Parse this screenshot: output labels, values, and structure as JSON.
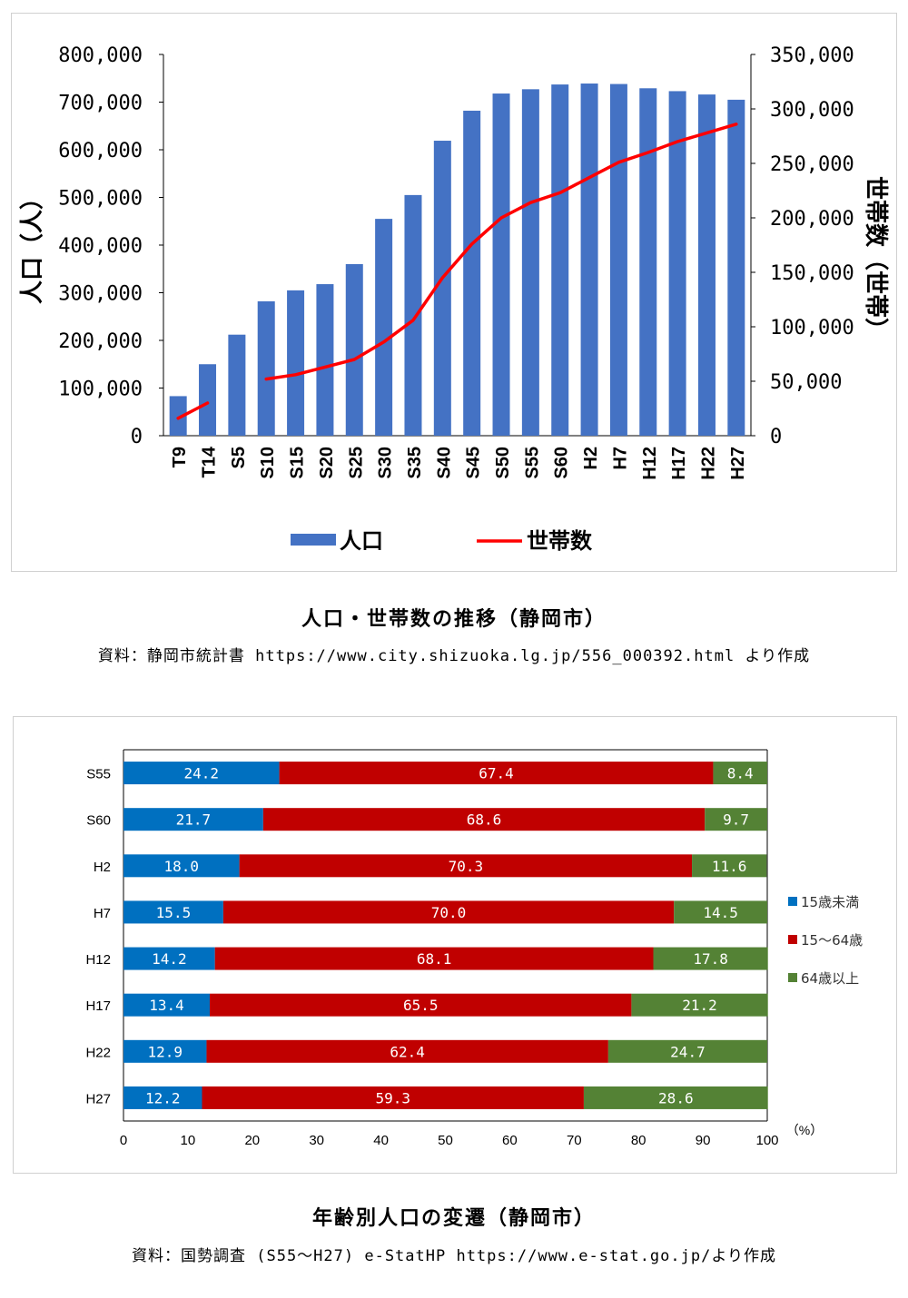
{
  "chart_data": [
    {
      "type": "bar+line",
      "title": "人口・世帯数の推移（静岡市）",
      "source": "資料：静岡市統計書 https://www.city.shizuoka.lg.jp/556_000392.html より作成",
      "categories": [
        "T9",
        "T14",
        "S5",
        "S10",
        "S15",
        "S20",
        "S25",
        "S30",
        "S35",
        "S40",
        "S45",
        "S50",
        "S55",
        "S60",
        "H2",
        "H7",
        "H12",
        "H17",
        "H22",
        "H27"
      ],
      "ylabel_left": "人口（人）",
      "ylabel_right": "世帯数（世帯）",
      "ylim_left": [
        0,
        800000
      ],
      "ylim_right": [
        0,
        350000
      ],
      "yticks_left": [
        "0",
        "100,000",
        "200,000",
        "300,000",
        "400,000",
        "500,000",
        "600,000",
        "700,000",
        "800,000"
      ],
      "yticks_right": [
        "0",
        "50,000",
        "100,000",
        "150,000",
        "200,000",
        "250,000",
        "300,000",
        "350,000"
      ],
      "grid": false,
      "legend_position": "bottom",
      "series": [
        {
          "name": "人口",
          "type": "bar",
          "axis": "left",
          "color": "#4472C4",
          "values": [
            83000,
            150000,
            212000,
            282000,
            305000,
            318000,
            360000,
            455000,
            505000,
            619000,
            682000,
            718000,
            727000,
            737000,
            739000,
            738000,
            729000,
            723000,
            716000,
            705000
          ]
        },
        {
          "name": "世帯数",
          "type": "line",
          "axis": "right",
          "color": "#FF0000",
          "values": [
            16000,
            30000,
            null,
            52000,
            56000,
            63000,
            70000,
            86000,
            106000,
            145000,
            176000,
            200000,
            214000,
            223000,
            237000,
            251000,
            260000,
            270000,
            278000,
            286000
          ]
        }
      ]
    },
    {
      "type": "bar",
      "stacked": "percent",
      "orientation": "horizontal",
      "title": "年齢別人口の変遷（静岡市）",
      "source": "資料：国勢調査 (S55～H27) e-StatHP https://www.e-stat.go.jp/より作成",
      "categories": [
        "S55",
        "S60",
        "H2",
        "H7",
        "H12",
        "H17",
        "H22",
        "H27"
      ],
      "xlim": [
        0,
        100
      ],
      "xticks": [
        "0",
        "10",
        "20",
        "30",
        "40",
        "50",
        "60",
        "70",
        "80",
        "90",
        "100"
      ],
      "xunit": "（%）",
      "grid": false,
      "legend_position": "right",
      "series": [
        {
          "name": "15歳未満",
          "color": "#0070C0",
          "values": [
            24.2,
            21.7,
            18.0,
            15.5,
            14.2,
            13.4,
            12.9,
            12.2
          ],
          "labels": [
            "24.2",
            "21.7",
            "18.0",
            "15.5",
            "14.2",
            "13.4",
            "12.9",
            "12.2"
          ]
        },
        {
          "name": "15～64歳",
          "color": "#C00000",
          "values": [
            67.4,
            68.6,
            70.3,
            70.0,
            68.1,
            65.5,
            62.4,
            59.3
          ],
          "labels": [
            "67.4",
            "68.6",
            "70.3",
            "70.0",
            "68.1",
            "65.5",
            "62.4",
            "59.3"
          ]
        },
        {
          "name": "64歳以上",
          "color": "#548235",
          "values": [
            8.4,
            9.7,
            11.6,
            14.5,
            17.8,
            21.2,
            24.7,
            28.6
          ],
          "labels": [
            "8.4",
            "9.7",
            "11.6",
            "14.5",
            "17.8",
            "21.2",
            "24.7",
            "28.6"
          ]
        }
      ]
    }
  ]
}
